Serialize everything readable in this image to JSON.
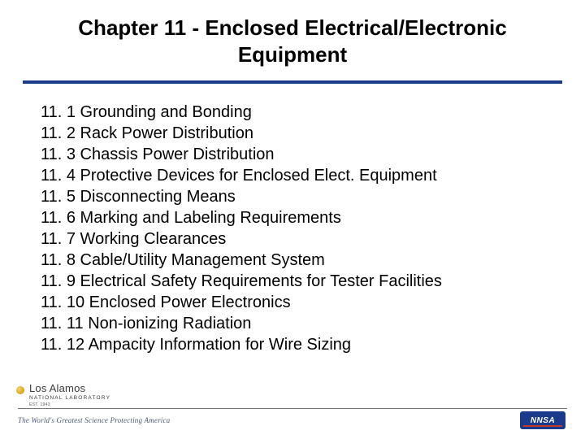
{
  "title": "Chapter 11 - Enclosed Electrical/Electronic Equipment",
  "items": [
    "11. 1 Grounding and Bonding",
    "11. 2 Rack Power Distribution",
    "11. 3 Chassis Power Distribution",
    "11. 4 Protective Devices for Enclosed Elect. Equipment",
    "11. 5 Disconnecting Means",
    "11. 6 Marking and Labeling Requirements",
    "11. 7 Working Clearances",
    "11. 8 Cable/Utility Management System",
    "11. 9 Electrical Safety Requirements for Tester Facilities",
    "11. 10 Enclosed Power Electronics",
    "11. 11 Non-ionizing Radiation",
    "11. 12 Ampacity Information for Wire Sizing"
  ],
  "footer": {
    "org_name": "Los Alamos",
    "org_sub": "NATIONAL LABORATORY",
    "org_est": "EST. 1943",
    "tagline": "The World's Greatest Science Protecting America",
    "right_mark": "NNSA"
  },
  "colors": {
    "rule": "#1a3b8c",
    "footer_rule": "#7a7a7a",
    "right_logo_bg": "#1a3b8c",
    "right_logo_stripe": "#c23a2e"
  }
}
